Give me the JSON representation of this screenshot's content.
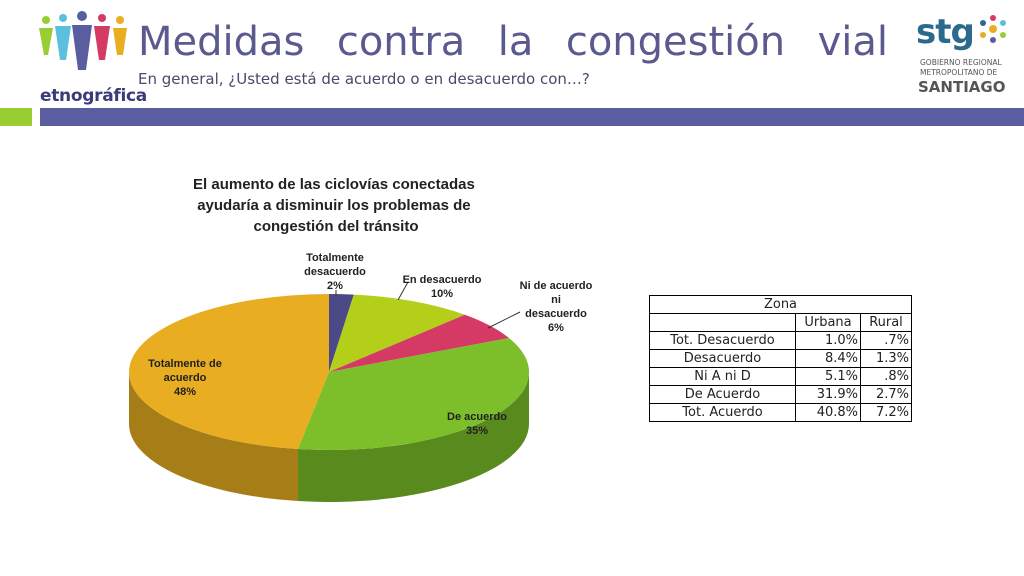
{
  "header": {
    "title": "Medidas contra la congestión vial",
    "subtitle": "En general, ¿Usted está de acuerdo o en desacuerdo con…?",
    "logo_left_text": "etnográfica",
    "logo_right": {
      "stg": "stg",
      "line1": "GOBIERNO REGIONAL",
      "line2": "METROPOLITANO DE",
      "line3": "SANTIAGO"
    }
  },
  "colors": {
    "accent_green": "#9acd32",
    "accent_purple": "#5a5ea0"
  },
  "chart_data": {
    "type": "pie",
    "title": "El aumento de las ciclovías conectadas ayudaría a disminuir los problemas de congestión del tránsito",
    "title_lines": [
      "El aumento de las ciclovías conectadas",
      "ayudaría a disminuir los problemas de",
      "congestión del tránsito"
    ],
    "slices": [
      {
        "label": "Totalmente desacuerdo",
        "label_lines": [
          "Totalmente",
          "desacuerdo",
          "2%"
        ],
        "value": 2,
        "color": "#4b4a86"
      },
      {
        "label": "En desacuerdo",
        "label_lines": [
          "En desacuerdo",
          "10%"
        ],
        "value": 10,
        "color": "#b4cf1a"
      },
      {
        "label": "Ni de acuerdo ni desacuerdo",
        "label_lines": [
          "Ni de acuerdo",
          "ni",
          "desacuerdo",
          "6%"
        ],
        "value": 6,
        "color": "#d43a63"
      },
      {
        "label": "De acuerdo",
        "label_lines": [
          "De acuerdo",
          "35%"
        ],
        "value": 35,
        "color": "#7cbf2a"
      },
      {
        "label": "Totalmente de acuerdo",
        "label_lines": [
          "Totalmente de",
          "acuerdo",
          "48%"
        ],
        "value": 48,
        "color": "#e8ad20"
      }
    ]
  },
  "table": {
    "group_header": "Zona",
    "columns": [
      "Urbana",
      "Rural"
    ],
    "rows": [
      {
        "label": "Tot. Desacuerdo",
        "values": [
          "1.0%",
          ".7%"
        ]
      },
      {
        "label": "Desacuerdo",
        "values": [
          "8.4%",
          "1.3%"
        ]
      },
      {
        "label": "Ni A ni D",
        "values": [
          "5.1%",
          ".8%"
        ]
      },
      {
        "label": "De Acuerdo",
        "values": [
          "31.9%",
          "2.7%"
        ]
      },
      {
        "label": "Tot. Acuerdo",
        "values": [
          "40.8%",
          "7.2%"
        ]
      }
    ]
  }
}
